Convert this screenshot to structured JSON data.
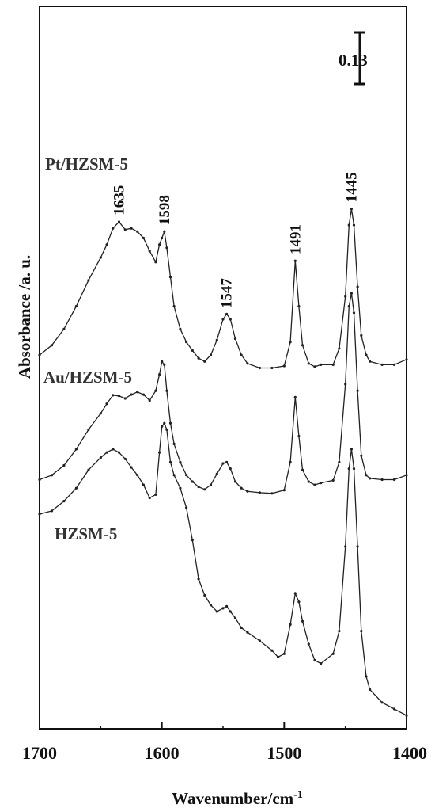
{
  "chart_data": {
    "type": "line",
    "xlabel": "Wavenumber/cm",
    "xlabel_superscript": "-1",
    "ylabel": "Absorbance /a. u.",
    "xlim": [
      1700,
      1400
    ],
    "x_reversed": true,
    "ylim": [
      0,
      1.0
    ],
    "x_ticks": [
      "1700",
      "1600",
      "1500",
      "1400"
    ],
    "x_tick_values": [
      1700,
      1600,
      1500,
      1400
    ],
    "grid": false,
    "scale_bar": {
      "label": "0.13",
      "value": 0.13
    },
    "series": [
      {
        "name": "Pt/HZSM-5",
        "x": [
          1700,
          1690,
          1680,
          1670,
          1660,
          1650,
          1645,
          1640,
          1635,
          1630,
          1625,
          1620,
          1615,
          1610,
          1605,
          1602,
          1600,
          1598,
          1596,
          1593,
          1590,
          1585,
          1580,
          1575,
          1570,
          1565,
          1560,
          1555,
          1550,
          1547,
          1544,
          1540,
          1535,
          1530,
          1520,
          1510,
          1500,
          1495,
          1491,
          1488,
          1485,
          1480,
          1475,
          1470,
          1460,
          1455,
          1450,
          1447,
          1445,
          1443,
          1440,
          1437,
          1433,
          1430,
          1420,
          1410,
          1400
        ],
        "y": [
          0.545,
          0.56,
          0.585,
          0.62,
          0.66,
          0.695,
          0.715,
          0.74,
          0.75,
          0.738,
          0.74,
          0.735,
          0.725,
          0.705,
          0.688,
          0.715,
          0.725,
          0.735,
          0.71,
          0.665,
          0.62,
          0.585,
          0.565,
          0.552,
          0.54,
          0.535,
          0.545,
          0.568,
          0.6,
          0.608,
          0.6,
          0.57,
          0.545,
          0.532,
          0.525,
          0.525,
          0.528,
          0.565,
          0.69,
          0.62,
          0.56,
          0.532,
          0.527,
          0.53,
          0.53,
          0.555,
          0.635,
          0.745,
          0.77,
          0.745,
          0.65,
          0.575,
          0.545,
          0.535,
          0.53,
          0.53,
          0.538
        ]
      },
      {
        "name": "Au/HZSM-5",
        "x": [
          1700,
          1690,
          1680,
          1670,
          1660,
          1650,
          1645,
          1640,
          1635,
          1630,
          1625,
          1620,
          1615,
          1610,
          1605,
          1602,
          1600,
          1598,
          1596,
          1593,
          1590,
          1585,
          1580,
          1575,
          1570,
          1565,
          1560,
          1555,
          1550,
          1547,
          1544,
          1540,
          1535,
          1530,
          1520,
          1510,
          1500,
          1495,
          1491,
          1488,
          1485,
          1480,
          1475,
          1470,
          1460,
          1455,
          1450,
          1447,
          1445,
          1443,
          1440,
          1437,
          1433,
          1430,
          1420,
          1410,
          1400
        ],
        "y": [
          0.353,
          0.36,
          0.375,
          0.4,
          0.43,
          0.455,
          0.47,
          0.483,
          0.482,
          0.478,
          0.484,
          0.488,
          0.484,
          0.475,
          0.49,
          0.515,
          0.535,
          0.53,
          0.49,
          0.44,
          0.408,
          0.38,
          0.36,
          0.35,
          0.342,
          0.338,
          0.345,
          0.362,
          0.378,
          0.38,
          0.37,
          0.35,
          0.34,
          0.335,
          0.333,
          0.332,
          0.337,
          0.38,
          0.48,
          0.42,
          0.368,
          0.35,
          0.345,
          0.348,
          0.352,
          0.38,
          0.5,
          0.62,
          0.64,
          0.61,
          0.49,
          0.39,
          0.36,
          0.355,
          0.353,
          0.353,
          0.36
        ]
      },
      {
        "name": "HZSM-5",
        "x": [
          1700,
          1690,
          1680,
          1670,
          1660,
          1650,
          1645,
          1640,
          1635,
          1630,
          1625,
          1620,
          1615,
          1610,
          1605,
          1602,
          1600,
          1598,
          1596,
          1593,
          1590,
          1585,
          1580,
          1575,
          1570,
          1565,
          1560,
          1555,
          1550,
          1547,
          1544,
          1540,
          1535,
          1530,
          1520,
          1510,
          1505,
          1500,
          1495,
          1491,
          1488,
          1485,
          1480,
          1475,
          1470,
          1460,
          1455,
          1450,
          1447,
          1445,
          1443,
          1440,
          1437,
          1433,
          1430,
          1420,
          1410,
          1400
        ],
        "y": [
          0.3,
          0.305,
          0.32,
          0.34,
          0.368,
          0.387,
          0.395,
          0.4,
          0.395,
          0.385,
          0.372,
          0.36,
          0.345,
          0.325,
          0.33,
          0.395,
          0.435,
          0.44,
          0.43,
          0.38,
          0.36,
          0.34,
          0.31,
          0.26,
          0.2,
          0.175,
          0.16,
          0.15,
          0.155,
          0.158,
          0.15,
          0.14,
          0.125,
          0.118,
          0.105,
          0.09,
          0.08,
          0.085,
          0.13,
          0.178,
          0.165,
          0.135,
          0.1,
          0.075,
          0.07,
          0.085,
          0.12,
          0.25,
          0.37,
          0.4,
          0.37,
          0.25,
          0.12,
          0.05,
          0.03,
          0.01,
          0.0,
          -0.01
        ]
      }
    ],
    "peak_labels": [
      {
        "text": "1635",
        "x": 1635,
        "y": 0.76
      },
      {
        "text": "1598",
        "x": 1598,
        "y": 0.745
      },
      {
        "text": "1547",
        "x": 1547,
        "y": 0.617
      },
      {
        "text": "1491",
        "x": 1491,
        "y": 0.7
      },
      {
        "text": "1445",
        "x": 1445,
        "y": 0.78
      }
    ]
  }
}
